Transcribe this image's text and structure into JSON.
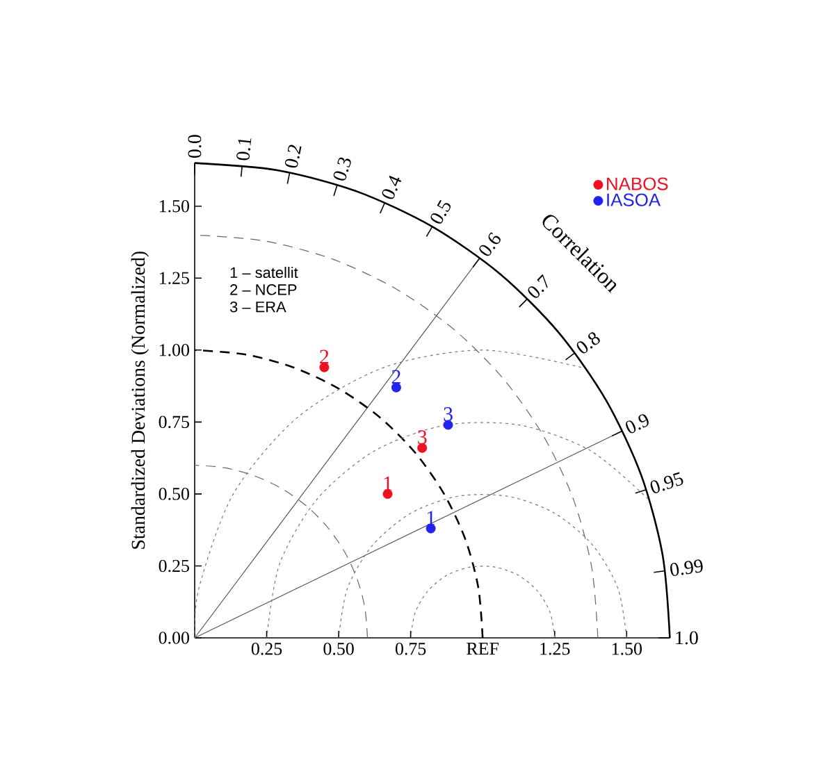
{
  "chart_data": {
    "type": "scatter",
    "ylabel": "Standardized Deviations (Normalized)",
    "xlim": [
      0,
      1.65
    ],
    "ylim": [
      0,
      1.65
    ],
    "xticks": [
      0.25,
      {
        "value": 0.5,
        "label": "0.50"
      },
      0.75,
      {
        "value": 1.0,
        "label": "REF"
      },
      1.25,
      {
        "value": 1.5,
        "label": "1.50"
      }
    ],
    "yticks": [
      {
        "value": 0,
        "label": "0.00"
      },
      0.25,
      {
        "value": 0.5,
        "label": "0.50"
      },
      0.75,
      {
        "value": 1.0,
        "label": "1.00"
      },
      1.25,
      {
        "value": 1.5,
        "label": "1.50"
      }
    ],
    "legend": "top right",
    "series": [
      {
        "type": "line",
        "marker": "none",
        "color": "#000000",
        "line_style": "solid",
        "x": [
          1.65,
          1.625,
          1.551,
          1.429,
          1.264,
          1.061,
          0.825,
          0.564,
          0.287,
          0
        ],
        "values": [
          0,
          0.287,
          0.564,
          0.825,
          1.061,
          1.264,
          1.429,
          1.551,
          1.625,
          1.65
        ]
      },
      {
        "type": "line",
        "marker": "none",
        "color": "#555555",
        "line_style": "solid",
        "x": [
          0,
          0.99
        ],
        "values": [
          0,
          1.32
        ]
      },
      {
        "type": "line",
        "marker": "none",
        "color": "#555555",
        "line_style": "solid",
        "x": [
          0,
          1.485
        ],
        "values": [
          0,
          0.719
        ]
      },
      {
        "type": "line",
        "marker": "none",
        "color": "#666666",
        "line_style": "dashed",
        "x": [
          0.6,
          0.591,
          0.564,
          0.52,
          0.46,
          0.386,
          0.3,
          0.205,
          0.104,
          0
        ],
        "values": [
          0,
          0.104,
          0.205,
          0.3,
          0.386,
          0.46,
          0.52,
          0.564,
          0.591,
          0.6
        ]
      },
      {
        "type": "line",
        "marker": "none",
        "color": "#000000",
        "line_style": "dashed",
        "x": [
          1,
          0.985,
          0.94,
          0.866,
          0.766,
          0.643,
          0.5,
          0.342,
          0.174,
          0
        ],
        "values": [
          0,
          0.174,
          0.342,
          0.5,
          0.643,
          0.766,
          0.866,
          0.94,
          0.985,
          1
        ]
      },
      {
        "type": "line",
        "marker": "none",
        "color": "#666666",
        "line_style": "dashed",
        "x": [
          1.4,
          1.379,
          1.316,
          1.212,
          1.072,
          0.9,
          0.7,
          0.479,
          0.243,
          0
        ],
        "values": [
          0,
          0.243,
          0.479,
          0.7,
          0.9,
          1.072,
          1.212,
          1.316,
          1.379,
          1.4
        ]
      },
      {
        "type": "line",
        "marker": "none",
        "color": "#777777",
        "line_style": "dotted",
        "x": [
          1.25,
          1.235,
          1.192,
          1.125,
          1.043,
          0.957,
          0.875,
          0.808,
          0.765,
          0.75
        ],
        "values": [
          0,
          0.086,
          0.161,
          0.217,
          0.246,
          0.246,
          0.217,
          0.161,
          0.086,
          0
        ]
      },
      {
        "type": "line",
        "marker": "none",
        "color": "#777777",
        "line_style": "dotted",
        "x": [
          1.5,
          1.47,
          1.383,
          1.25,
          1.087,
          0.913,
          0.75,
          0.617,
          0.53,
          0.5
        ],
        "values": [
          0,
          0.171,
          0.321,
          0.433,
          0.492,
          0.492,
          0.433,
          0.321,
          0.171,
          0
        ]
      },
      {
        "type": "line",
        "marker": "none",
        "color": "#777777",
        "line_style": "dotted",
        "x": [
          1.575,
          1.375,
          1.13,
          0.87,
          0.625,
          0.425,
          0.295,
          0.25
        ],
        "values": [
          0.482,
          0.65,
          0.739,
          0.739,
          0.65,
          0.482,
          0.257,
          0
        ]
      },
      {
        "type": "line",
        "marker": "none",
        "color": "#777777",
        "line_style": "dotted",
        "x": [
          1.342,
          1,
          0.658,
          0.357,
          0.134,
          0.015,
          0
        ],
        "values": [
          0.94,
          1,
          0.94,
          0.766,
          0.5,
          0.174,
          0
        ]
      },
      {
        "name": "NABOS",
        "marker": "circle",
        "color": "#ee1122",
        "x": [
          0.67,
          0.45,
          0.79
        ],
        "values": [
          0.5,
          0.94,
          0.66
        ]
      },
      {
        "name": "IASOA",
        "marker": "circle",
        "color": "#2222ee",
        "x": [
          0.82,
          0.7,
          0.88
        ],
        "values": [
          0.38,
          0.87,
          0.74
        ]
      }
    ],
    "annotations": [
      "Correlation",
      "1 – satellit",
      "2 – NCEP",
      "3 – ERA",
      {
        "text": "1",
        "x": 0.67,
        "y": 0.5
      },
      {
        "text": "2",
        "x": 0.45,
        "y": 0.94
      },
      {
        "text": "3",
        "x": 0.79,
        "y": 0.66
      },
      {
        "text": "1",
        "x": 0.82,
        "y": 0.38
      },
      {
        "text": "2",
        "x": 0.7,
        "y": 0.87
      },
      {
        "text": "3",
        "x": 0.88,
        "y": 0.74
      },
      {
        "text": "0.0",
        "x": 0,
        "y": 1.65
      },
      {
        "text": "0.1",
        "x": 0.165,
        "y": 1.642
      },
      {
        "text": "0.2",
        "x": 0.33,
        "y": 1.617
      },
      {
        "text": "0.3",
        "x": 0.495,
        "y": 1.574
      },
      {
        "text": "0.4",
        "x": 0.66,
        "y": 1.512
      },
      {
        "text": "0.5",
        "x": 0.825,
        "y": 1.429
      },
      {
        "text": "0.6",
        "x": 0.99,
        "y": 1.32
      },
      {
        "text": "0.7",
        "x": 1.155,
        "y": 1.178
      },
      {
        "text": "0.8",
        "x": 1.32,
        "y": 0.99
      },
      {
        "text": "0.9",
        "x": 1.485,
        "y": 0.719
      },
      {
        "text": "0.95",
        "x": 1.568,
        "y": 0.515
      },
      {
        "text": "0.99",
        "x": 1.634,
        "y": 0.233
      },
      {
        "text": "1.0",
        "x": 1.65,
        "y": 0
      }
    ]
  }
}
